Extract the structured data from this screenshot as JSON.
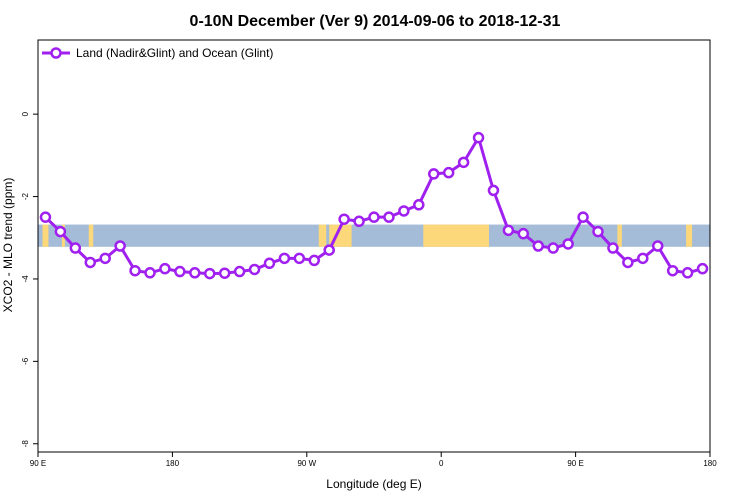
{
  "chart_data": {
    "type": "line",
    "title": "0-10N December (Ver 9)   2014-09-06 to 2018-12-31",
    "xlabel": "Longitude (deg E)",
    "ylabel": "XCO2 - MLO trend (ppm)",
    "xlim": [
      90,
      540
    ],
    "ylim": [
      -8.2,
      1.8
    ],
    "x_ticks": [
      90,
      180,
      270,
      360,
      450,
      540
    ],
    "x_tick_labels": [
      "90 E",
      "180",
      "90 W",
      "0",
      "90 E",
      "180"
    ],
    "y_ticks": [
      0,
      -2,
      -4,
      -6,
      -8
    ],
    "y_tick_labels": [
      "0",
      "-2",
      "-4",
      "-6",
      "-8"
    ],
    "legend_position": "top-left",
    "grid": false,
    "colors": {
      "series": "#a020f0",
      "ocean": "#a4bcd8",
      "land": "#fcd87a"
    },
    "series": [
      {
        "name": "Land (Nadir&Glint) and Ocean (Glint)",
        "x": [
          95,
          105,
          115,
          125,
          135,
          145,
          155,
          165,
          175,
          185,
          195,
          205,
          215,
          225,
          235,
          245,
          255,
          265,
          275,
          285,
          295,
          305,
          315,
          325,
          335,
          345,
          355,
          365,
          375,
          385,
          395,
          405,
          415,
          425,
          435,
          445,
          455,
          465,
          475,
          485,
          495,
          505,
          515,
          525,
          535
        ],
        "values": [
          -2.5,
          -2.85,
          -3.25,
          -3.6,
          -3.5,
          -3.2,
          -3.8,
          -3.85,
          -3.75,
          -3.82,
          -3.85,
          -3.87,
          -3.86,
          -3.82,
          -3.77,
          -3.62,
          -3.5,
          -3.5,
          -3.55,
          -3.3,
          -2.55,
          -2.6,
          -2.5,
          -2.5,
          -2.35,
          -2.2,
          -1.45,
          -1.42,
          -1.17,
          -0.57,
          -1.85,
          -2.82,
          -2.9,
          -3.2,
          -3.25,
          -3.15,
          -2.5,
          -2.85,
          -3.25,
          -3.6,
          -3.5,
          -3.2,
          -3.8,
          -3.85,
          -3.75
        ]
      }
    ],
    "background_band": {
      "y_range": [
        -3.22,
        -2.68
      ],
      "land_x_ranges": [
        [
          93,
          97
        ],
        [
          106,
          108
        ],
        [
          124,
          127
        ],
        [
          278,
          283
        ],
        [
          285,
          300
        ],
        [
          348,
          392
        ],
        [
          524,
          528
        ],
        [
          478,
          481
        ]
      ]
    }
  }
}
